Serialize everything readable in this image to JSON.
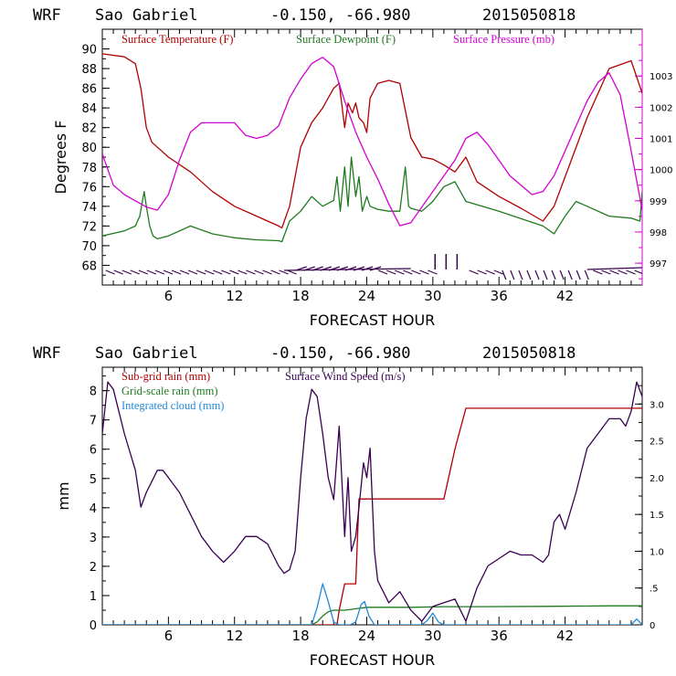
{
  "chart_data": [
    {
      "type": "line",
      "header": {
        "model": "WRF",
        "location": "Sao Gabriel",
        "coords": "-0.150, -66.980",
        "date": "2015050818"
      },
      "xlabel": "FORECAST HOUR",
      "ylabel": "Degrees F",
      "xlim": [
        0,
        49
      ],
      "ylim": [
        66,
        92
      ],
      "y2lim": [
        996.3,
        1004.5
      ],
      "xticks": [
        6,
        12,
        18,
        24,
        30,
        36,
        42
      ],
      "yticks": [
        68,
        70,
        72,
        74,
        76,
        78,
        80,
        82,
        84,
        86,
        88,
        90
      ],
      "y2ticks": [
        997,
        998,
        999,
        1000,
        1001,
        1002,
        1003
      ],
      "series": [
        {
          "name": "Surface Temperature (F)",
          "color": "#b00000",
          "axis": "left",
          "x": [
            0,
            2,
            3,
            3.5,
            4,
            4.5,
            5,
            6,
            8,
            10,
            12,
            14,
            16,
            16.3,
            17,
            18,
            19,
            20,
            21,
            21.5,
            22,
            22.3,
            22.7,
            23,
            23.3,
            23.7,
            24,
            24.3,
            25,
            26,
            27,
            28,
            29,
            30,
            31,
            32,
            33,
            34,
            36,
            38,
            40,
            41,
            42,
            44,
            46,
            48,
            49
          ],
          "y": [
            89.5,
            89.2,
            88.5,
            86,
            82,
            80.5,
            80,
            79,
            77.5,
            75.5,
            74,
            73,
            72,
            71.8,
            74,
            80,
            82.5,
            84,
            86,
            86.5,
            82,
            84.5,
            83.5,
            84.5,
            83,
            82.5,
            81.5,
            85,
            86.5,
            86.8,
            86.5,
            81,
            79,
            78.8,
            78.2,
            77.5,
            79,
            76.5,
            75,
            73.8,
            72.5,
            74,
            77,
            83,
            88,
            88.8,
            85.5
          ]
        },
        {
          "name": "Surface Dewpoint (F)",
          "color": "#1f7a1f",
          "axis": "left",
          "x": [
            0,
            2,
            3,
            3.4,
            3.8,
            4,
            4.3,
            4.6,
            5,
            6,
            8,
            10,
            12,
            14,
            16,
            16.3,
            17,
            18,
            19,
            20,
            21,
            21.3,
            21.6,
            22,
            22.3,
            22.6,
            23,
            23.3,
            23.6,
            24,
            24.3,
            25,
            26,
            27,
            27.5,
            27.8,
            28,
            29,
            30,
            31,
            32,
            33,
            36,
            40,
            41,
            42,
            43,
            44,
            46,
            48,
            48.8,
            49
          ],
          "y": [
            71,
            71.5,
            72,
            73,
            75.5,
            74,
            72,
            71,
            70.7,
            71,
            72,
            71.2,
            70.8,
            70.6,
            70.5,
            70.4,
            72.5,
            73.5,
            75,
            74,
            74.6,
            77,
            73.5,
            78,
            74,
            79,
            75,
            77,
            73.5,
            75,
            74,
            73.7,
            73.5,
            73.5,
            78,
            74,
            73.8,
            73.5,
            74.5,
            76,
            76.5,
            74.5,
            73.5,
            72,
            71.2,
            73,
            74.5,
            74,
            73,
            72.8,
            72.5,
            75.5
          ]
        },
        {
          "name": "Surface Pressure (mb)",
          "color": "#d400d4",
          "axis": "right",
          "x": [
            0,
            1,
            2,
            3,
            4,
            5,
            6,
            7,
            8,
            9,
            10,
            11,
            12,
            13,
            14,
            15,
            16,
            17,
            18,
            19,
            20,
            21,
            22,
            23,
            24,
            25,
            26,
            27,
            28,
            29,
            30,
            31,
            32,
            33,
            34,
            35,
            36,
            37,
            38,
            39,
            40,
            41,
            42,
            43,
            44,
            45,
            46,
            47,
            48,
            49
          ],
          "y": [
            1000.5,
            999.5,
            999.2,
            999.0,
            998.8,
            998.7,
            999.2,
            1000.3,
            1001.2,
            1001.5,
            1001.5,
            1001.5,
            1001.5,
            1001.1,
            1001.0,
            1001.1,
            1001.4,
            1002.3,
            1002.9,
            1003.4,
            1003.6,
            1003.3,
            1002.2,
            1001.2,
            1000.4,
            999.7,
            998.9,
            998.2,
            998.3,
            998.8,
            999.3,
            999.8,
            1000.3,
            1001.0,
            1001.2,
            1000.8,
            1000.3,
            999.8,
            999.5,
            999.2,
            999.3,
            999.8,
            1000.6,
            1001.4,
            1002.2,
            1002.8,
            1003.1,
            1002.4,
            1000.6,
            998.7
          ]
        }
      ],
      "wind_barbs_label": "wind barbs"
    },
    {
      "type": "line",
      "header": {
        "model": "WRF",
        "location": "Sao Gabriel",
        "coords": "-0.150, -66.980",
        "date": "2015050818"
      },
      "xlabel": "FORECAST HOUR",
      "ylabel": "mm",
      "xlim": [
        0,
        49
      ],
      "ylim": [
        0,
        8.8
      ],
      "y2lim": [
        0,
        3.5
      ],
      "xticks": [
        6,
        12,
        18,
        24,
        30,
        36,
        42
      ],
      "yticks": [
        0,
        1,
        2,
        3,
        4,
        5,
        6,
        7,
        8
      ],
      "y2ticks": [
        "0",
        ".5",
        "1.0",
        "1.5",
        "2.0",
        "2.5",
        "3.0"
      ],
      "y2values": [
        0,
        0.5,
        1,
        1.5,
        2,
        2.5,
        3
      ],
      "series": [
        {
          "name": "Sub-grid rain (mm)",
          "color": "#b00000",
          "axis": "left",
          "x": [
            0,
            21.3,
            21.5,
            22,
            23,
            23.3,
            24,
            25,
            29,
            31,
            32,
            33,
            36,
            40,
            44,
            48.6,
            49
          ],
          "y": [
            0,
            0,
            0.5,
            1.4,
            1.4,
            4.3,
            4.3,
            4.3,
            4.3,
            4.3,
            6,
            7.4,
            7.4,
            7.4,
            7.4,
            7.4,
            7.4
          ]
        },
        {
          "name": "Grid-scale rain (mm)",
          "color": "#1f7a1f",
          "axis": "left",
          "x": [
            0,
            19,
            19.5,
            20,
            20.5,
            21,
            22,
            23,
            24,
            25,
            28,
            31,
            34,
            40,
            46,
            49
          ],
          "y": [
            0,
            0,
            0.1,
            0.3,
            0.45,
            0.5,
            0.5,
            0.55,
            0.6,
            0.6,
            0.6,
            0.62,
            0.62,
            0.63,
            0.65,
            0.65
          ]
        },
        {
          "name": "Integrated cloud (mm)",
          "color": "#1e88d8",
          "axis": "left",
          "x": [
            0,
            19,
            19.5,
            20,
            20.5,
            21,
            21.5,
            22,
            22.5,
            23,
            23.5,
            23.8,
            24.2,
            24.7,
            25,
            29,
            29.5,
            30,
            30.5,
            31,
            48,
            48.5,
            49
          ],
          "y": [
            0,
            0,
            0.6,
            1.4,
            0.8,
            0.1,
            0,
            0,
            0,
            0.1,
            0.7,
            0.8,
            0.3,
            0,
            0,
            0,
            0.15,
            0.4,
            0.1,
            0,
            0,
            0.2,
            0
          ]
        },
        {
          "name": "Surface Wind Speed (m/s)",
          "color": "#3a0050",
          "axis": "right",
          "x": [
            0,
            0.5,
            1,
            2,
            3,
            3.5,
            4,
            5,
            5.5,
            6,
            7,
            8,
            9,
            10,
            11,
            12,
            13,
            14,
            15,
            16,
            16.5,
            17,
            17.5,
            18,
            18.5,
            19,
            19.5,
            20,
            20.5,
            21,
            21.5,
            22,
            22.3,
            22.6,
            23,
            23.3,
            23.7,
            24,
            24.3,
            24.7,
            25,
            25.5,
            26,
            27,
            28,
            29,
            30,
            31,
            32,
            32.5,
            33,
            34,
            35,
            36,
            37,
            38,
            39,
            40,
            40.5,
            41,
            41.5,
            42,
            43,
            44,
            45,
            46,
            47,
            47.5,
            48,
            48.5,
            49
          ],
          "y": [
            2.6,
            3.3,
            3.2,
            2.6,
            2.1,
            1.6,
            1.8,
            2.1,
            2.1,
            2.0,
            1.8,
            1.5,
            1.2,
            1.0,
            0.85,
            1.0,
            1.2,
            1.2,
            1.1,
            0.8,
            0.7,
            0.75,
            1.0,
            2.0,
            2.8,
            3.2,
            3.1,
            2.6,
            2.0,
            1.7,
            2.7,
            1.2,
            2.0,
            1.0,
            1.2,
            1.6,
            2.2,
            2.0,
            2.4,
            1.0,
            0.6,
            0.45,
            0.3,
            0.45,
            0.2,
            0.05,
            0.25,
            0.3,
            0.35,
            0.2,
            0.05,
            0.5,
            0.8,
            0.9,
            1.0,
            0.95,
            0.95,
            0.85,
            0.95,
            1.4,
            1.5,
            1.3,
            1.8,
            2.4,
            2.6,
            2.8,
            2.8,
            2.7,
            2.9,
            3.3,
            3.1
          ]
        }
      ]
    }
  ]
}
